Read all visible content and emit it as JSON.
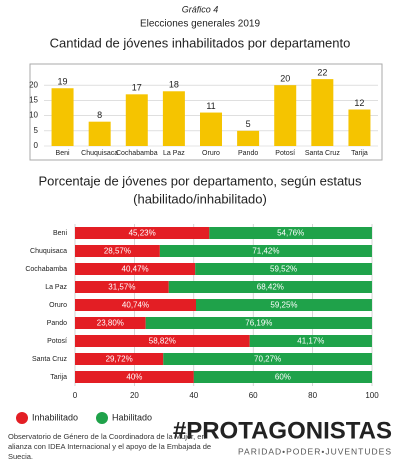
{
  "header": {
    "label": "Gráfico 4",
    "subtitle": "Elecciones generales 2019"
  },
  "chart_data": [
    {
      "type": "bar",
      "title": "Cantidad de jóvenes inhabilitados por departamento",
      "categories": [
        "Beni",
        "Chuquisaca",
        "Cochabamba",
        "La Paz",
        "Oruro",
        "Pando",
        "Potosí",
        "Santa Cruz",
        "Tarija"
      ],
      "values": [
        19,
        8,
        17,
        18,
        11,
        5,
        20,
        22,
        12
      ],
      "color": "#f5c400",
      "ylim": [
        0,
        25
      ],
      "yticks": [
        0,
        5,
        10,
        15,
        20
      ],
      "grid": true
    },
    {
      "type": "bar",
      "orientation": "horizontal",
      "stacked": true,
      "title": "Porcentaje de jóvenes por departamento, según estatus",
      "subtitle": "(habilitado/inhabilitado)",
      "categories": [
        "Beni",
        "Chuquisaca",
        "Cochabamba",
        "La Paz",
        "Oruro",
        "Pando",
        "Potosí",
        "Santa Cruz",
        "Tarija"
      ],
      "series": [
        {
          "name": "Inhabilitado",
          "color": "#e31e24",
          "values": [
            45.23,
            28.57,
            40.47,
            31.57,
            40.74,
            23.8,
            58.82,
            29.72,
            40
          ],
          "value_labels": [
            "45,23%",
            "28,57%",
            "40,47%",
            "31,57%",
            "40,74%",
            "23,80%",
            "58,82%",
            "29,72%",
            "40%"
          ]
        },
        {
          "name": "Habilitado",
          "color": "#1fa24a",
          "values": [
            54.76,
            71.42,
            59.52,
            68.42,
            59.25,
            76.19,
            41.17,
            70.27,
            60
          ],
          "value_labels": [
            "54,76%",
            "71,42%",
            "59,52%",
            "68,42%",
            "59,25%",
            "76,19%",
            "41,17%",
            "70,27%",
            "60%"
          ]
        }
      ],
      "xlim": [
        0,
        100
      ],
      "xticks": [
        0,
        20,
        40,
        60,
        80,
        100
      ],
      "grid": true,
      "legend": "bottom"
    }
  ],
  "footer": {
    "note": "Observatorio de Género de la Coordinadora de la Mujer, en alianza con IDEA Internacional y el apoyo de la Embajada de Suecia.",
    "logo": "#PROTAGONISTAS",
    "tagline": "PARIDAD•PODER•JUVENTUDES"
  }
}
